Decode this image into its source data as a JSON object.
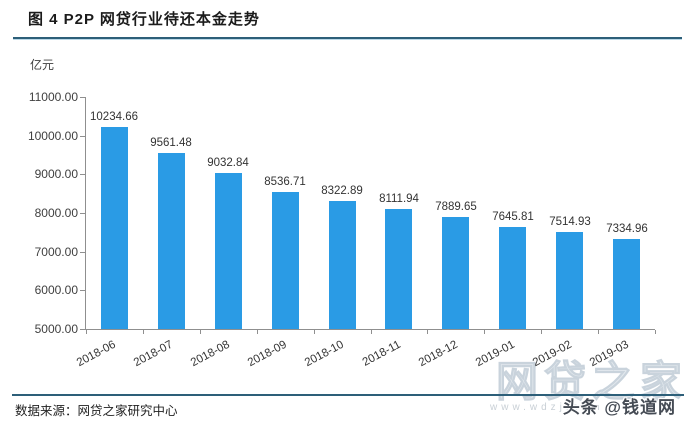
{
  "header": {
    "title": "图 4  P2P 网贷行业待还本金走势"
  },
  "footer": {
    "source": "数据来源：网贷之家研究中心"
  },
  "watermarks": {
    "site_name": "网贷之家",
    "site_url": "www.wdzj.com",
    "toutiao": "头条 @钱道网"
  },
  "colors": {
    "bar": "#2a9be5",
    "divider": "#2d5f79",
    "divider_light": "#bcd9e8",
    "axis": "#8f8f8f",
    "text": "#333333"
  },
  "chart_data": {
    "type": "bar",
    "title": "图 4 P2P 网贷行业待还本金走势",
    "unit_label": "亿元",
    "xlabel": "",
    "ylabel": "亿元",
    "categories": [
      "2018-06",
      "2018-07",
      "2018-08",
      "2018-09",
      "2018-10",
      "2018-11",
      "2018-12",
      "2019-01",
      "2019-02",
      "2019-03"
    ],
    "values": [
      10234.66,
      9561.48,
      9032.84,
      8536.71,
      8322.89,
      8111.94,
      7889.65,
      7645.81,
      7514.93,
      7334.96
    ],
    "ylim": [
      5000,
      11000
    ],
    "yticks": [
      5000,
      6000,
      7000,
      8000,
      9000,
      10000,
      11000
    ],
    "ytick_decimals": 2,
    "value_label_decimals": 2,
    "grid": false,
    "legend": false,
    "bar_color": "#2a9be5"
  }
}
